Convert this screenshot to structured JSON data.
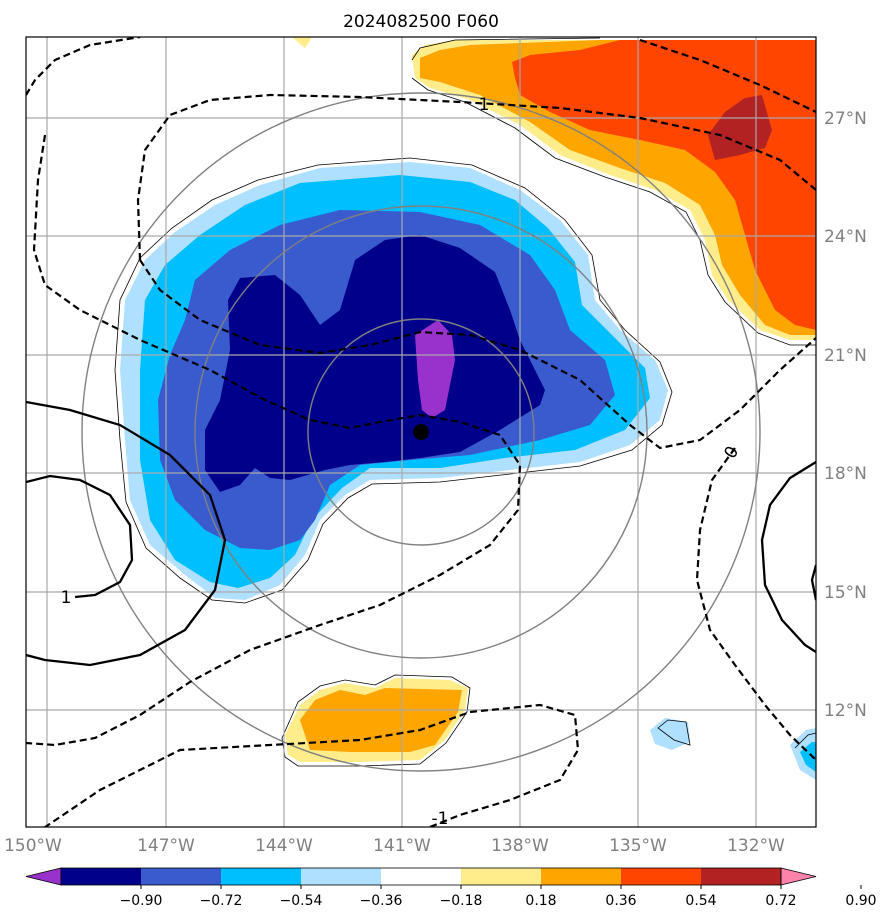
{
  "chart_data": {
    "type": "map",
    "title": "2024082500 F060",
    "x_ticks": [
      "150°W",
      "147°W",
      "144°W",
      "141°W",
      "138°W",
      "135°W",
      "132°W"
    ],
    "y_ticks": [
      "27°N",
      "24°N",
      "21°N",
      "18°N",
      "15°N",
      "12°N"
    ],
    "xlim": [
      -150.5,
      -130.5
    ],
    "ylim": [
      9.0,
      29.0
    ],
    "storm_center": {
      "lon": -140.5,
      "lat": 19.0
    },
    "range_rings_deg": [
      3,
      6,
      9
    ],
    "contour_labels": [
      "1",
      "0",
      "1",
      "-1"
    ],
    "colorbar": {
      "ticks": [
        "−0.90",
        "−0.72",
        "−0.54",
        "−0.36",
        "−0.18",
        "0.18",
        "0.36",
        "0.54",
        "0.72",
        "0.90"
      ],
      "colors": [
        "#9932cc",
        "#00008b",
        "#3a5bcd",
        "#00bfff",
        "#b0e0ff",
        "#ffffff",
        "#ffec8b",
        "#ffa500",
        "#ff4500",
        "#b22222",
        "#ff82ab"
      ],
      "extend": "both"
    }
  }
}
